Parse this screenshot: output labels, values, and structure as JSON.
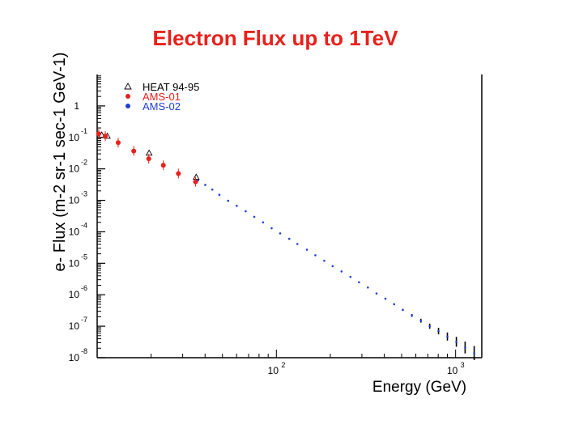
{
  "slide": {
    "title": "Electron Flux up to 1TeV"
  },
  "colors": {
    "title": "#e8201b",
    "heat": "#000000",
    "ams01": "#e8201b",
    "ams02": "#1f3fd1"
  },
  "chart_data": {
    "type": "scatter",
    "title": "Electron Flux up to 1TeV",
    "xlabel": "Energy (GeV)",
    "ylabel": "e- Flux (m-2 sr-1 sec-1 GeV-1)",
    "xscale": "log",
    "yscale": "log",
    "xlim": [
      10,
      1400
    ],
    "ylim": [
      1e-08,
      10
    ],
    "x_ticks": [
      {
        "value": 100,
        "label": "10",
        "exp": "2"
      },
      {
        "value": 1000,
        "label": "10",
        "exp": "3"
      }
    ],
    "y_ticks": [
      {
        "value": 1,
        "label": "1",
        "exp": ""
      },
      {
        "value": 0.1,
        "label": "10",
        "exp": "-1"
      },
      {
        "value": 0.01,
        "label": "10",
        "exp": "-2"
      },
      {
        "value": 0.001,
        "label": "10",
        "exp": "-3"
      },
      {
        "value": 0.0001,
        "label": "10",
        "exp": "-4"
      },
      {
        "value": 1e-05,
        "label": "10",
        "exp": "-5"
      },
      {
        "value": 1e-06,
        "label": "10",
        "exp": "-6"
      },
      {
        "value": 1e-07,
        "label": "10",
        "exp": "-7"
      },
      {
        "value": 1e-08,
        "label": "10",
        "exp": "-8"
      }
    ],
    "legend_position": "top-left",
    "series": [
      {
        "name": "HEAT 94-95",
        "marker": "triangle",
        "color": "#000000",
        "x": [
          10.6,
          11.4,
          19.5,
          35.7
        ],
        "y": [
          0.12,
          0.11,
          0.032,
          0.0055
        ]
      },
      {
        "name": "AMS-01",
        "marker": "circle",
        "color": "#e8201b",
        "x": [
          10.2,
          11.1,
          13.1,
          16.0,
          19.4,
          23.4,
          28.4,
          35.4
        ],
        "y": [
          0.13,
          0.11,
          0.068,
          0.037,
          0.021,
          0.013,
          0.0071,
          0.0039
        ]
      },
      {
        "name": "AMS-02",
        "marker": "dot",
        "color": "#1f3fd1",
        "x": [
          36.6,
          40.1,
          43.9,
          48.1,
          53.8,
          60.1,
          67.4,
          75.3,
          84.3,
          94.1,
          105,
          118,
          131,
          148,
          165,
          185,
          206,
          231,
          259,
          289,
          324,
          362,
          406,
          454,
          508,
          570,
          640,
          717,
          803,
          900,
          1010,
          1130,
          1270
        ],
        "y": [
          0.0043,
          0.0031,
          0.0022,
          0.0015,
          0.00097,
          0.00067,
          0.00045,
          0.0003,
          0.0002,
          0.00013,
          8.9e-05,
          6e-05,
          4.1e-05,
          2.7e-05,
          1.8e-05,
          1.2e-05,
          8.1e-06,
          5.5e-06,
          3.7e-06,
          2.5e-06,
          1.7e-06,
          1.1e-06,
          7.5e-07,
          5e-07,
          3.3e-07,
          2.2e-07,
          1.5e-07,
          1e-07,
          7e-08,
          4.7e-08,
          3.2e-08,
          2.1e-08,
          1.4e-08
        ]
      }
    ]
  }
}
